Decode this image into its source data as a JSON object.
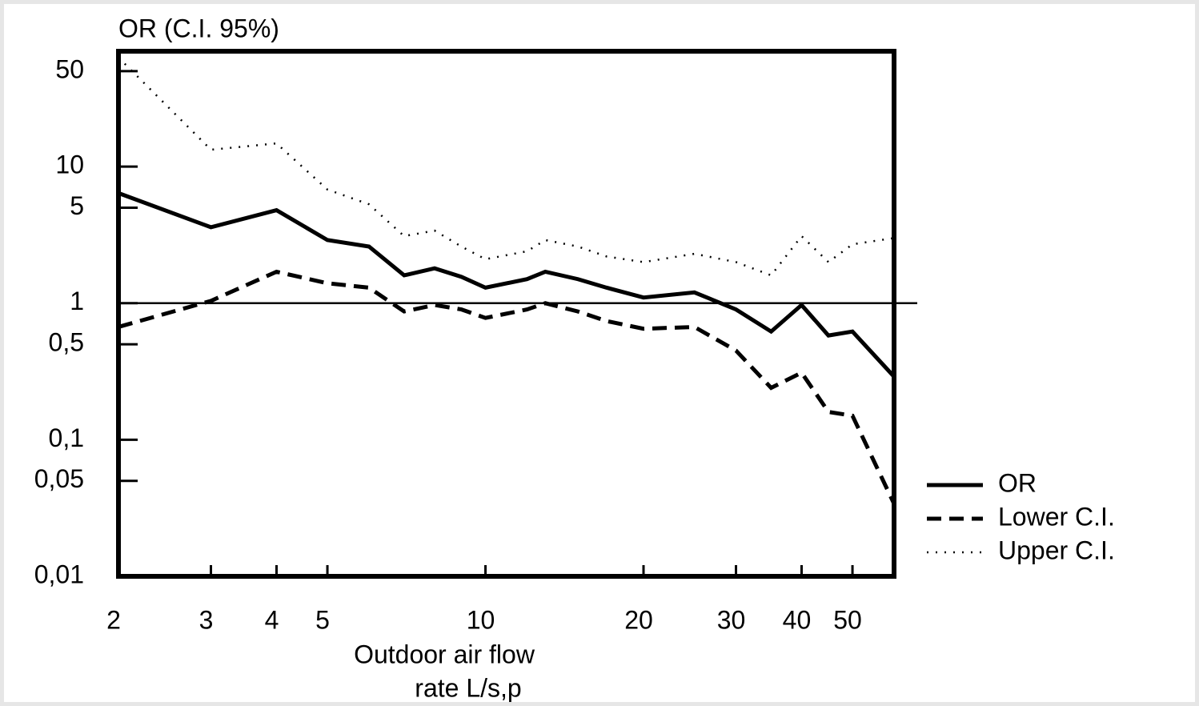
{
  "chart_data": {
    "type": "line",
    "ylabel": "OR (C.I. 95%)",
    "xlabel": [
      "Outdoor air flow",
      "rate L/s,p"
    ],
    "log_x": true,
    "log_y": true,
    "x": [
      2,
      3,
      4,
      5,
      6,
      7,
      8,
      9,
      10,
      12,
      13,
      15,
      17,
      20,
      25,
      30,
      35,
      40,
      45,
      50,
      60
    ],
    "series": [
      {
        "name": "OR",
        "color": "#000000",
        "style": "solid",
        "values": [
          6.4,
          3.6,
          4.8,
          2.9,
          2.6,
          1.6,
          1.8,
          1.56,
          1.3,
          1.5,
          1.7,
          1.5,
          1.3,
          1.1,
          1.2,
          0.9,
          0.62,
          0.97,
          0.58,
          0.62,
          0.29
        ]
      },
      {
        "name": "Lower C.I.",
        "color": "#000000",
        "style": "dashed",
        "values": [
          0.67,
          1.04,
          1.7,
          1.4,
          1.3,
          0.87,
          0.97,
          0.9,
          0.78,
          0.9,
          1.0,
          0.87,
          0.74,
          0.65,
          0.67,
          0.45,
          0.24,
          0.31,
          0.16,
          0.15,
          0.034
        ]
      },
      {
        "name": "Upper C.I.",
        "color": "#000000",
        "style": "dotted",
        "values": [
          63,
          13.3,
          14.8,
          6.8,
          5.3,
          3.1,
          3.4,
          2.6,
          2.1,
          2.4,
          2.9,
          2.6,
          2.2,
          2.0,
          2.3,
          2.0,
          1.6,
          3.1,
          2.0,
          2.7,
          3.0
        ]
      }
    ],
    "xlim": [
      2,
      60
    ],
    "ylim": [
      0.01,
      70
    ],
    "xticks": [
      2,
      3,
      4,
      5,
      10,
      20,
      30,
      40,
      50
    ],
    "yticks": [
      50,
      10,
      5,
      1,
      {
        "value": 0.5,
        "label": "0,5"
      },
      {
        "value": 0.1,
        "label": "0,1"
      },
      {
        "value": 0.05,
        "label": "0,05"
      },
      {
        "value": 0.01,
        "label": "0,01"
      }
    ],
    "hline": 1,
    "legend": "lower right outside"
  }
}
